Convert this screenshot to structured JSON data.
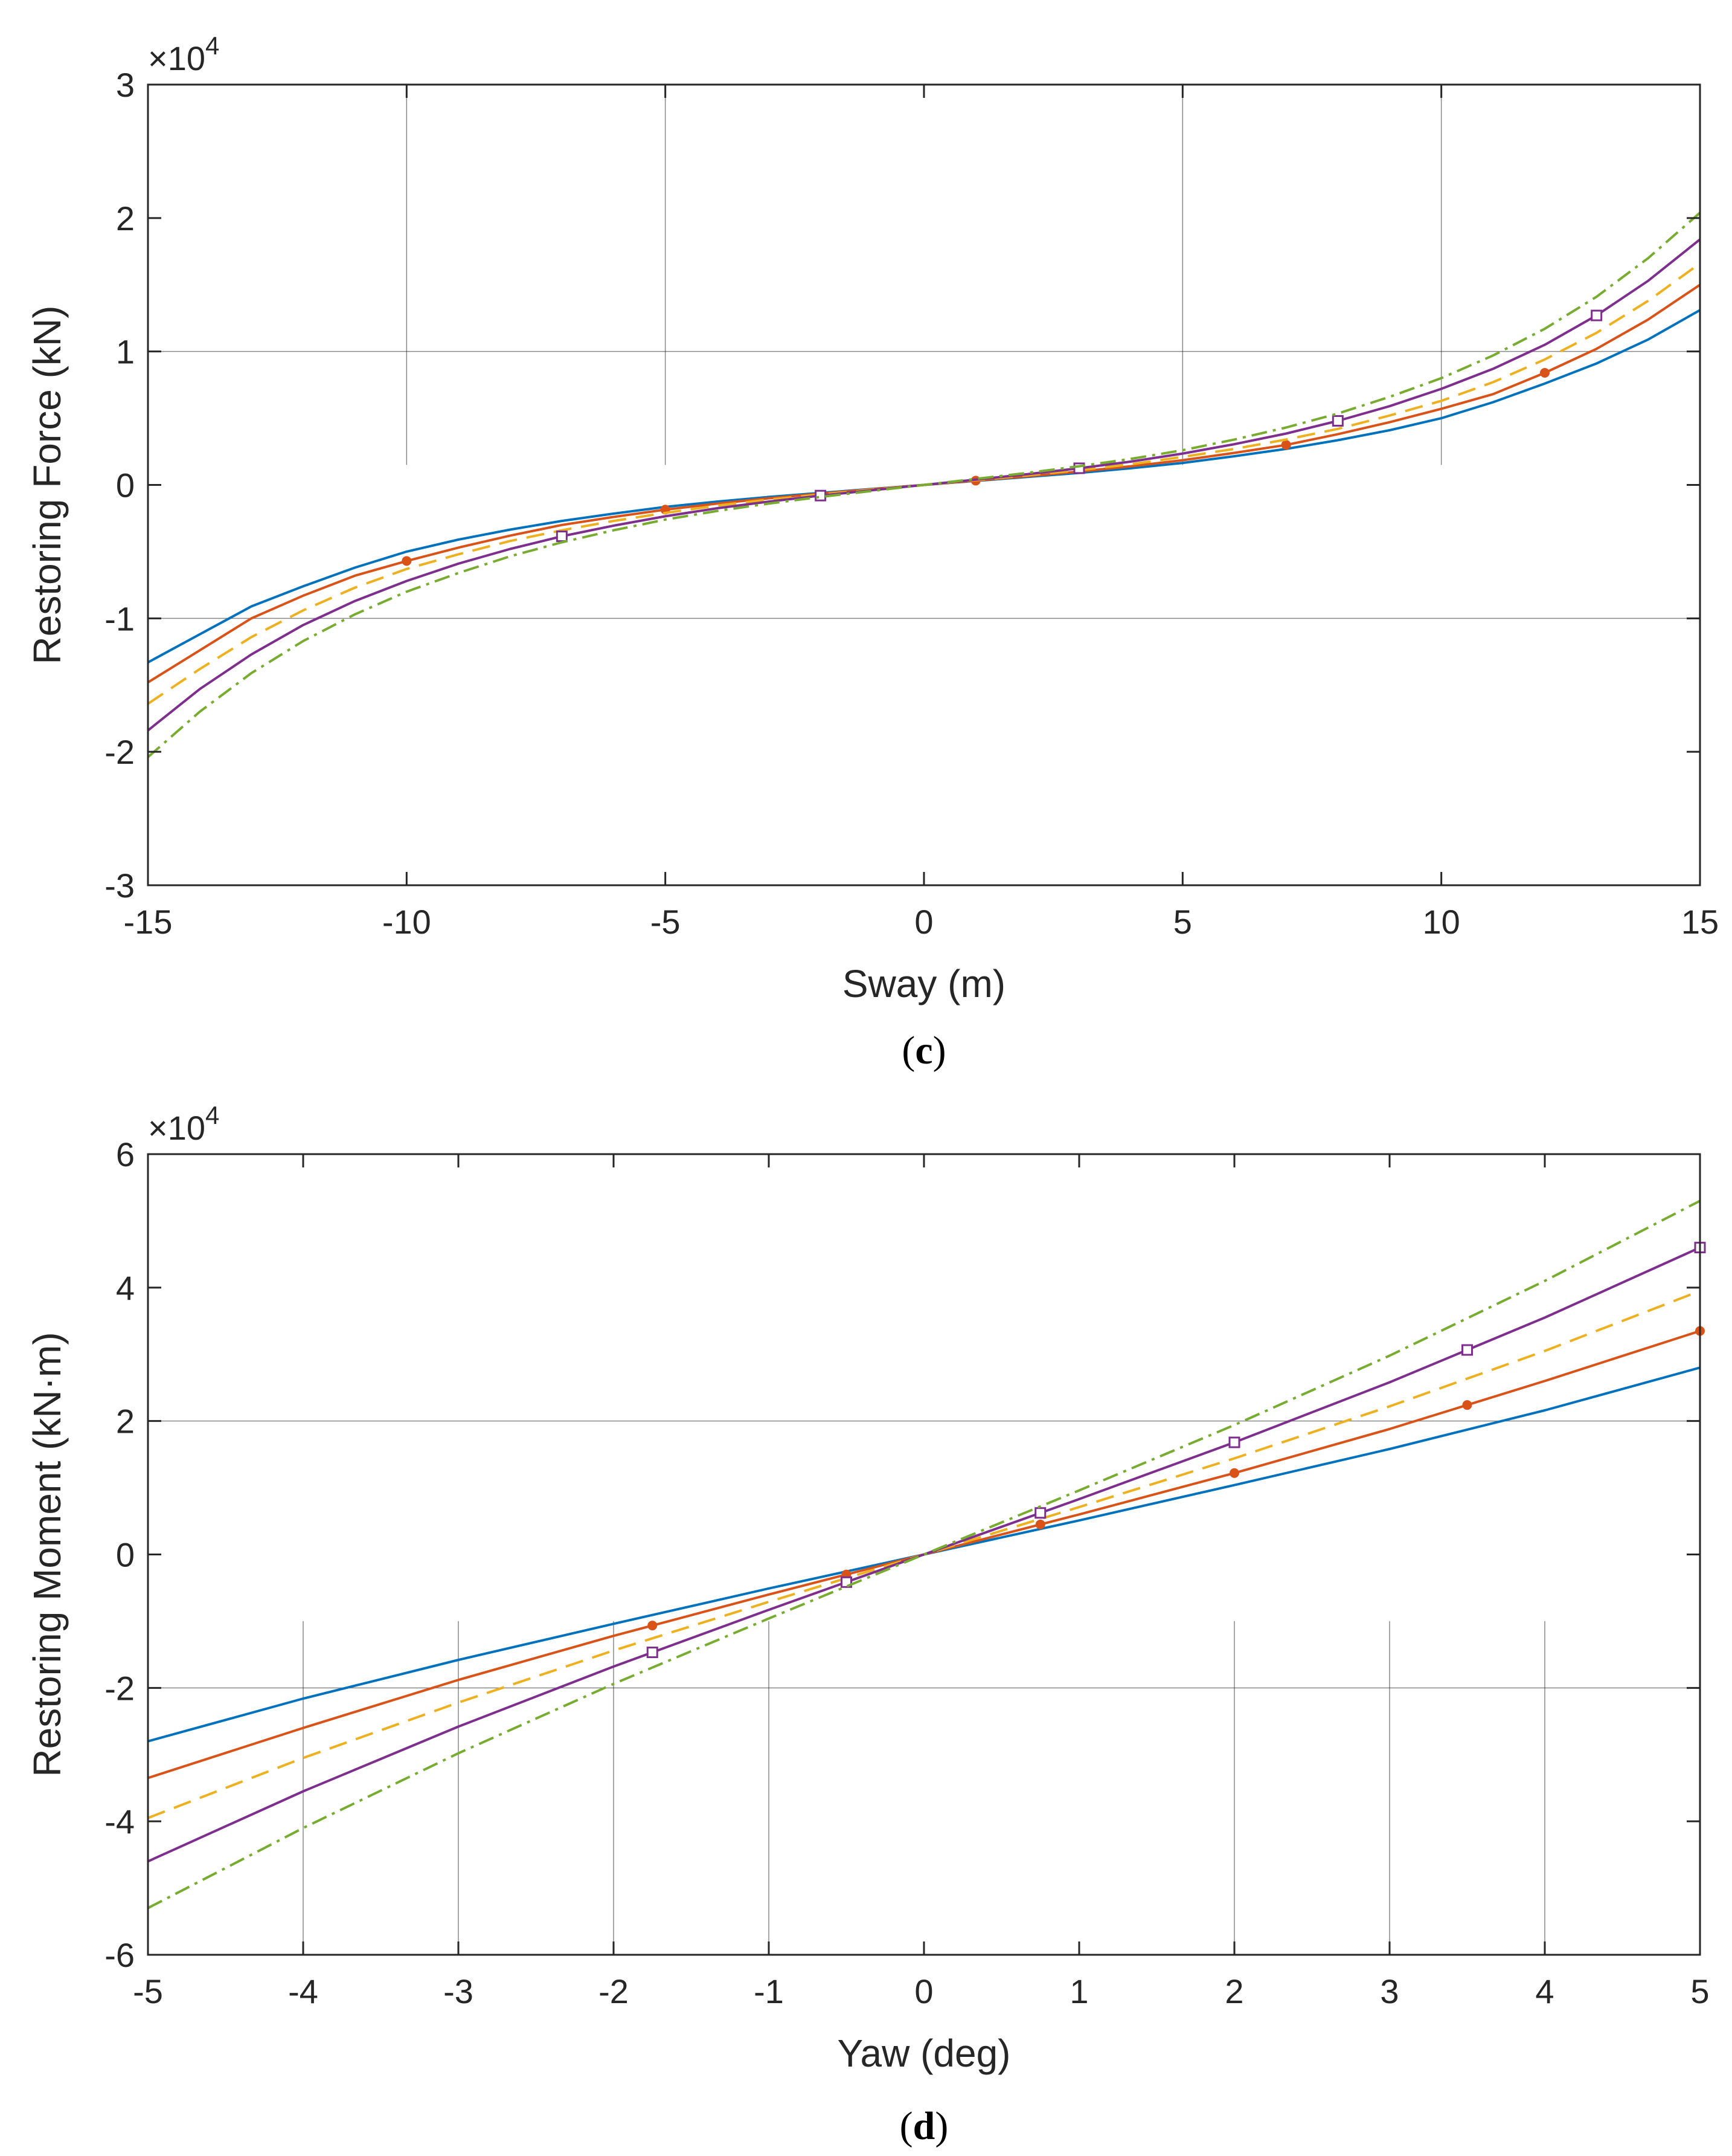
{
  "colors": {
    "series1": "#0072BD",
    "series2": "#D95319",
    "series3": "#EDB120",
    "series4": "#7E2F8E",
    "series5": "#77AC30",
    "axes": "#262626",
    "grid": "#262626"
  },
  "chart_data": [
    {
      "panel": "c",
      "type": "line",
      "caption_open": "(",
      "caption_letter": "c",
      "caption_close": ")",
      "xlabel": "Sway (m)",
      "ylabel": "Restoring Force (kN)",
      "exponent_prefix": "×10",
      "exponent_power": "4",
      "xlim": [
        -15,
        15
      ],
      "ylim": [
        -3,
        3
      ],
      "xticks": [
        -15,
        -10,
        -5,
        0,
        5,
        10,
        15
      ],
      "xtick_labels": [
        "-15",
        "-10",
        "-5",
        "0",
        "5",
        "10",
        "15"
      ],
      "yticks": [
        -3,
        -2,
        -1,
        0,
        1,
        2,
        3
      ],
      "ytick_labels": [
        "-3",
        "-2",
        "-1",
        "0",
        "1",
        "2",
        "3"
      ],
      "hgrid": [
        -1,
        1
      ],
      "vgrid": [
        -10,
        -5,
        5,
        10
      ],
      "vgrid_ylim": [
        0.15,
        3
      ],
      "x": [
        -15,
        -14,
        -13,
        -12,
        -11,
        -10,
        -9,
        -8,
        -7,
        -6,
        -5,
        -4,
        -3,
        -2,
        -1,
        0,
        1,
        2,
        3,
        4,
        5,
        6,
        7,
        8,
        9,
        10,
        11,
        12,
        13,
        14,
        15
      ],
      "series": [
        {
          "name": "series1",
          "color_key": "series1",
          "dash": "",
          "marker": "none",
          "markers_at": [],
          "values": [
            -1.33,
            -1.12,
            -0.91,
            -0.76,
            -0.62,
            -0.5,
            -0.41,
            -0.335,
            -0.27,
            -0.215,
            -0.165,
            -0.125,
            -0.09,
            -0.06,
            -0.03,
            0,
            0.03,
            0.06,
            0.09,
            0.125,
            0.165,
            0.215,
            0.27,
            0.335,
            0.41,
            0.5,
            0.62,
            0.76,
            0.91,
            1.09,
            1.31
          ]
        },
        {
          "name": "series2",
          "color_key": "series2",
          "dash": "",
          "marker": "dot",
          "markers_at": [
            -10,
            -5,
            1,
            7,
            12
          ],
          "values": [
            -1.48,
            -1.24,
            -1.0,
            -0.83,
            -0.68,
            -0.57,
            -0.47,
            -0.38,
            -0.3,
            -0.24,
            -0.185,
            -0.14,
            -0.1,
            -0.065,
            -0.032,
            0,
            0.032,
            0.065,
            0.1,
            0.14,
            0.185,
            0.24,
            0.3,
            0.38,
            0.47,
            0.57,
            0.68,
            0.84,
            1.02,
            1.24,
            1.5
          ]
        },
        {
          "name": "series3",
          "color_key": "series3",
          "dash": "30,16",
          "marker": "none",
          "markers_at": [],
          "values": [
            -1.64,
            -1.38,
            -1.14,
            -0.94,
            -0.77,
            -0.63,
            -0.52,
            -0.42,
            -0.34,
            -0.27,
            -0.21,
            -0.155,
            -0.11,
            -0.072,
            -0.035,
            0,
            0.035,
            0.072,
            0.11,
            0.155,
            0.21,
            0.27,
            0.34,
            0.42,
            0.52,
            0.63,
            0.77,
            0.94,
            1.14,
            1.38,
            1.66
          ]
        },
        {
          "name": "series4",
          "color_key": "series4",
          "dash": "",
          "marker": "square",
          "markers_at": [
            -7,
            -2,
            3,
            8,
            13
          ],
          "values": [
            -1.84,
            -1.53,
            -1.27,
            -1.05,
            -0.87,
            -0.72,
            -0.59,
            -0.48,
            -0.385,
            -0.305,
            -0.235,
            -0.175,
            -0.125,
            -0.08,
            -0.04,
            0,
            0.04,
            0.08,
            0.125,
            0.175,
            0.235,
            0.305,
            0.385,
            0.48,
            0.59,
            0.72,
            0.87,
            1.05,
            1.27,
            1.53,
            1.84
          ]
        },
        {
          "name": "series5",
          "color_key": "series5",
          "dash": "26,10,5,10",
          "marker": "none",
          "markers_at": [],
          "values": [
            -2.04,
            -1.7,
            -1.41,
            -1.17,
            -0.97,
            -0.8,
            -0.66,
            -0.535,
            -0.43,
            -0.34,
            -0.26,
            -0.195,
            -0.14,
            -0.09,
            -0.045,
            0,
            0.045,
            0.09,
            0.14,
            0.195,
            0.26,
            0.34,
            0.43,
            0.535,
            0.66,
            0.8,
            0.97,
            1.17,
            1.41,
            1.7,
            2.04
          ]
        }
      ]
    },
    {
      "panel": "d",
      "type": "line",
      "caption_open": "(",
      "caption_letter": "d",
      "caption_close": ")",
      "xlabel": "Yaw (deg)",
      "ylabel": "Restoring Moment (kN·m)",
      "exponent_prefix": "×10",
      "exponent_power": "4",
      "xlim": [
        -5,
        5
      ],
      "ylim": [
        -6,
        6
      ],
      "xticks": [
        -5,
        -4,
        -3,
        -2,
        -1,
        0,
        1,
        2,
        3,
        4,
        5
      ],
      "xtick_labels": [
        "-5",
        "-4",
        "-3",
        "-2",
        "-1",
        "0",
        "1",
        "2",
        "3",
        "4",
        "5"
      ],
      "yticks": [
        -6,
        -4,
        -2,
        0,
        2,
        4,
        6
      ],
      "ytick_labels": [
        "-6",
        "-4",
        "-2",
        "0",
        "2",
        "4",
        "6"
      ],
      "hgrid": [
        -2,
        2
      ],
      "vgrid": [
        -4,
        -3,
        -2,
        -1,
        2,
        3,
        4
      ],
      "vgrid_ylim": [
        -6,
        -1
      ],
      "x": [
        -5,
        -4,
        -3,
        -2,
        -1,
        0,
        1,
        2,
        3,
        4,
        5
      ],
      "series": [
        {
          "name": "series1",
          "color_key": "series1",
          "dash": "",
          "marker": "none",
          "markers_at": [],
          "values": [
            -2.8,
            -2.16,
            -1.58,
            -1.04,
            -0.51,
            0,
            0.51,
            1.04,
            1.58,
            2.16,
            2.8
          ]
        },
        {
          "name": "series2",
          "color_key": "series2",
          "dash": "",
          "marker": "dot",
          "markers_at": [
            -1.75,
            -0.5,
            0.75,
            2,
            3.5,
            5
          ],
          "values": [
            -3.35,
            -2.6,
            -1.88,
            -1.22,
            -0.6,
            0,
            0.6,
            1.22,
            1.88,
            2.6,
            3.35
          ]
        },
        {
          "name": "series3",
          "color_key": "series3",
          "dash": "30,16",
          "marker": "none",
          "markers_at": [],
          "values": [
            -3.95,
            -3.05,
            -2.22,
            -1.44,
            -0.71,
            0,
            0.71,
            1.44,
            2.22,
            3.05,
            3.95
          ]
        },
        {
          "name": "series4",
          "color_key": "series4",
          "dash": "",
          "marker": "square",
          "markers_at": [
            -1.75,
            -0.5,
            0.75,
            2,
            3.5,
            5
          ],
          "values": [
            -4.6,
            -3.55,
            -2.58,
            -1.68,
            -0.83,
            0,
            0.83,
            1.68,
            2.58,
            3.55,
            4.6
          ]
        },
        {
          "name": "series5",
          "color_key": "series5",
          "dash": "26,10,5,10",
          "marker": "none",
          "markers_at": [],
          "values": [
            -5.3,
            -4.1,
            -2.98,
            -1.94,
            -0.96,
            0,
            0.96,
            1.94,
            2.98,
            4.1,
            5.3
          ]
        }
      ]
    }
  ]
}
